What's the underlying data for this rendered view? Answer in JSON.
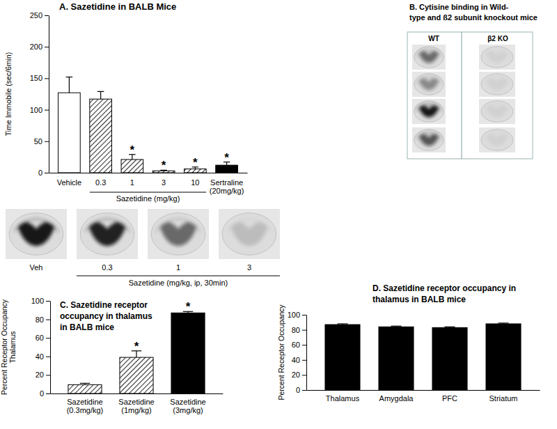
{
  "chart_data": [
    {
      "type": "bar",
      "title": "A. Sazetidine in BALB Mice",
      "y_label": "Time Immobile (sec/6min)",
      "categories": [
        "Vehicle",
        "0.3",
        "1",
        "3",
        "10",
        "Sertraline\n(20mg/kg)"
      ],
      "values": [
        127,
        117,
        21,
        3,
        6,
        12
      ],
      "error": [
        25,
        12,
        8,
        1,
        3,
        5
      ],
      "annotations": [
        null,
        null,
        "*",
        "*",
        "*",
        "*"
      ],
      "group": {
        "label": "Sazetidine (mg/kg)",
        "categories": [
          "0.3",
          "1",
          "3",
          "10"
        ]
      },
      "colors": [
        "#ffffff",
        "#333333",
        "#333333",
        "#333333",
        "#333333",
        "#000000"
      ],
      "ylim": [
        0,
        250
      ],
      "yticks": [
        0,
        50,
        100,
        150,
        200,
        250
      ]
    },
    {
      "type": "bar",
      "title": "C.  Sazetidine receptor\noccupancy in thalamus\nin BALB mice",
      "y_label": "Percent Receptor Occupancy\nThalamus",
      "categories": [
        "Sazetidine\n(0.3mg/kg)",
        "Sazetidine\n(1mg/kg)",
        "Sazetidine\n(3mg/kg)"
      ],
      "values": [
        9.5,
        39,
        87
      ],
      "error": [
        1.5,
        7,
        1.5
      ],
      "annotations": [
        null,
        "*",
        "*"
      ],
      "colors": [
        "#333333",
        "#333333",
        "#000000"
      ],
      "ylim": [
        0,
        100
      ],
      "yticks": [
        0,
        20,
        40,
        60,
        80,
        100
      ]
    },
    {
      "type": "bar",
      "title": "D.  Sazetidine receptor occupancy in\nthalamus in BALB mice",
      "y_label": "Percent Receptor Occupancy",
      "categories": [
        "Thalamus",
        "Amygdala",
        "PFC",
        "Striatum"
      ],
      "values": [
        87,
        84,
        83,
        88
      ],
      "error": [
        1,
        1,
        1,
        1
      ],
      "colors": [
        "#000000",
        "#000000",
        "#000000",
        "#000000"
      ],
      "ylim": [
        0,
        100
      ],
      "yticks": [
        0,
        20,
        40,
        60,
        80,
        100
      ]
    }
  ],
  "autoradiographs": {
    "labels": [
      "Veh",
      "0.3",
      "1",
      "3"
    ],
    "group": {
      "label": "Sazetidine (mg/kg, ip, 30min)",
      "labels": [
        "0.3",
        "1",
        "3"
      ]
    }
  },
  "panel_b": {
    "title": "B. Cytisine binding in Wild-\ntype and ß2 subunit knockout mice",
    "columns": [
      "WT",
      "β2 KO"
    ]
  }
}
